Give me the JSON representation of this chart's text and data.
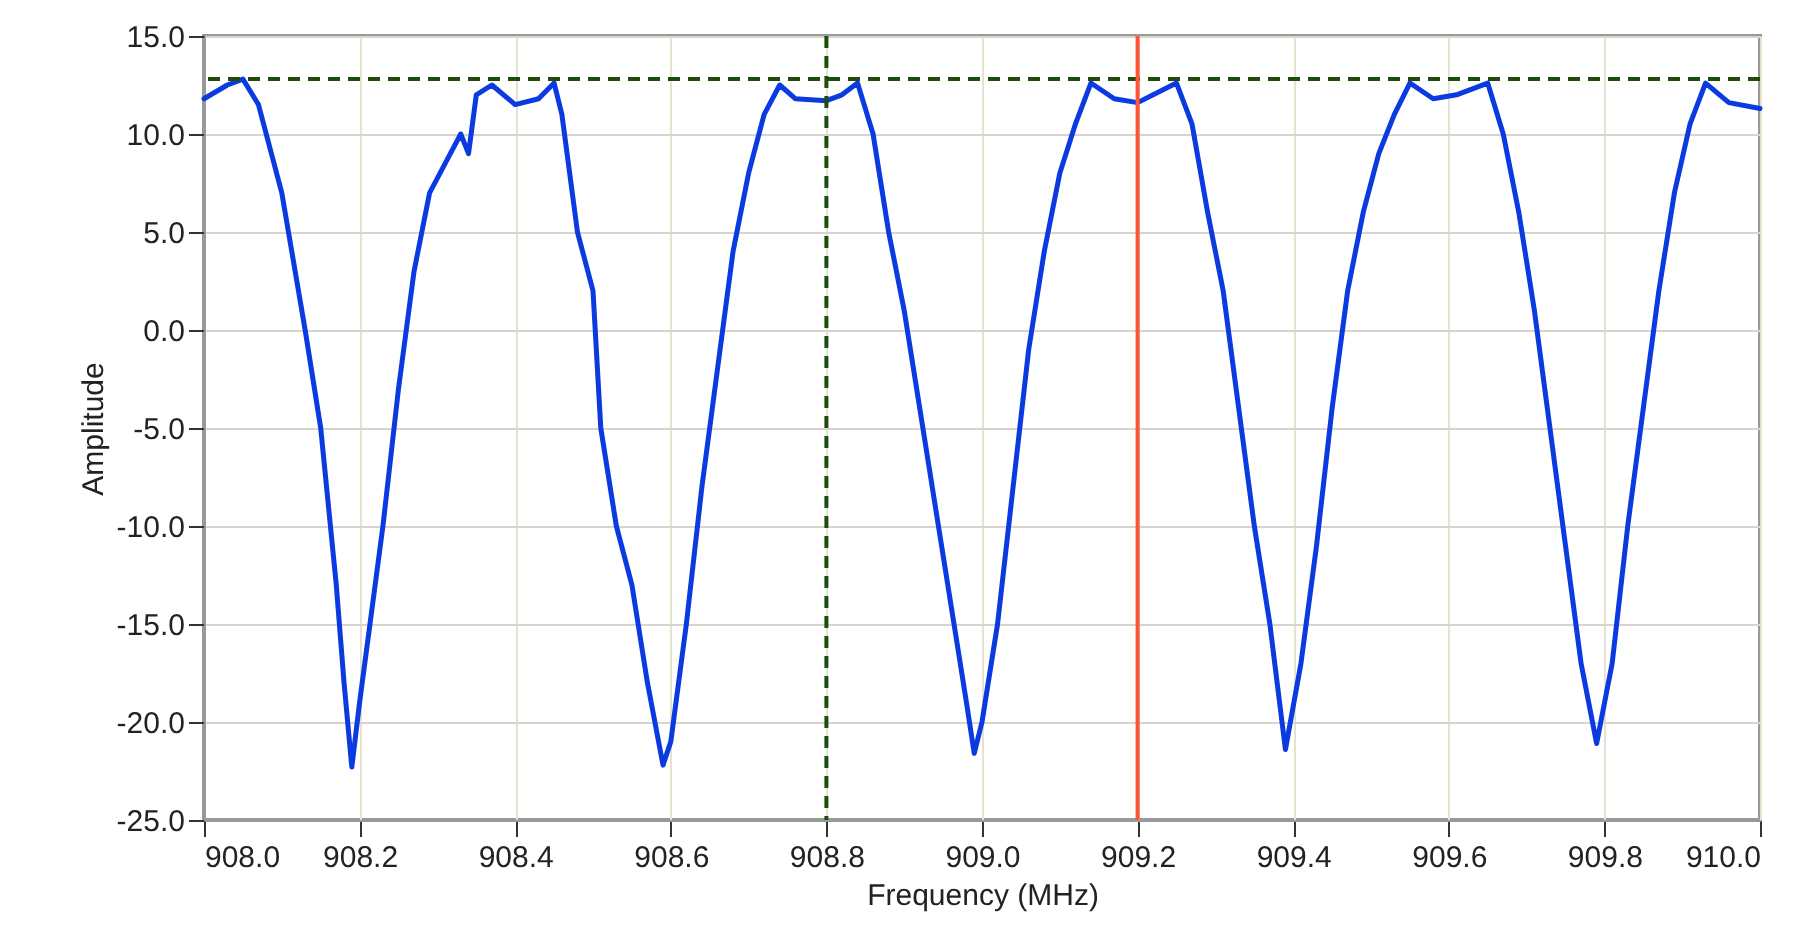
{
  "chart_data": {
    "type": "line",
    "xlabel": "Frequency (MHz)",
    "ylabel": "Amplitude",
    "x": [
      908.0,
      908.03,
      908.05,
      908.07,
      908.1,
      908.13,
      908.15,
      908.17,
      908.18,
      908.19,
      908.2,
      908.21,
      908.23,
      908.25,
      908.27,
      908.29,
      908.31,
      908.33,
      908.34,
      908.35,
      908.37,
      908.4,
      908.43,
      908.45,
      908.46,
      908.48,
      908.5,
      908.51,
      908.53,
      908.55,
      908.57,
      908.59,
      908.6,
      908.62,
      908.64,
      908.66,
      908.68,
      908.7,
      908.72,
      908.74,
      908.76,
      908.8,
      908.82,
      908.84,
      908.86,
      908.88,
      908.9,
      908.92,
      908.94,
      908.96,
      908.98,
      908.99,
      909.0,
      909.02,
      909.04,
      909.06,
      909.08,
      909.1,
      909.12,
      909.14,
      909.17,
      909.2,
      909.22,
      909.25,
      909.27,
      909.29,
      909.31,
      909.33,
      909.35,
      909.37,
      909.39,
      909.41,
      909.43,
      909.45,
      909.47,
      909.49,
      909.51,
      909.53,
      909.55,
      909.58,
      909.61,
      909.65,
      909.67,
      909.69,
      909.71,
      909.73,
      909.75,
      909.77,
      909.79,
      909.81,
      909.83,
      909.85,
      909.87,
      909.89,
      909.91,
      909.93,
      909.96,
      910.0
    ],
    "series": [
      {
        "color": "#0a3ae0",
        "values": [
          11.8,
          12.5,
          12.8,
          11.5,
          7,
          0,
          -5,
          -13,
          -18,
          -22.3,
          -19,
          -16,
          -10,
          -3,
          3,
          7,
          8.5,
          10,
          9,
          12,
          12.5,
          11.5,
          11.8,
          12.6,
          11,
          5,
          2,
          -5,
          -10,
          -13,
          -18,
          -22.2,
          -21,
          -15,
          -8,
          -2,
          4,
          8,
          11,
          12.5,
          11.8,
          11.7,
          12,
          12.6,
          10,
          5,
          1,
          -4,
          -9,
          -14,
          -19,
          -21.6,
          -20,
          -15,
          -8,
          -1,
          4,
          8,
          10.5,
          12.6,
          11.8,
          11.6,
          12,
          12.6,
          10.5,
          6,
          2,
          -4,
          -10,
          -15,
          -21.4,
          -17,
          -11,
          -4,
          2,
          6,
          9,
          11,
          12.6,
          11.8,
          12,
          12.6,
          10,
          6,
          1,
          -5,
          -11,
          -17,
          -21.1,
          -17,
          -10,
          -4,
          2,
          7,
          10.5,
          12.6,
          11.6,
          11.3
        ]
      }
    ],
    "xlim": [
      908.0,
      910.0
    ],
    "ylim": [
      -25.0,
      15.0
    ],
    "xticks": [
      {
        "value": 908.0,
        "label": "908.0"
      },
      {
        "value": 908.2,
        "label": "908.2"
      },
      {
        "value": 908.4,
        "label": "908.4"
      },
      {
        "value": 908.6,
        "label": "908.6"
      },
      {
        "value": 908.8,
        "label": "908.8"
      },
      {
        "value": 909.0,
        "label": "909.0"
      },
      {
        "value": 909.2,
        "label": "909.2"
      },
      {
        "value": 909.4,
        "label": "909.4"
      },
      {
        "value": 909.6,
        "label": "909.6"
      },
      {
        "value": 909.8,
        "label": "909.8"
      },
      {
        "value": 910.0,
        "label": "910.0"
      }
    ],
    "yticks": [
      {
        "value": -25,
        "label": "-25.0"
      },
      {
        "value": -20,
        "label": "-20.0"
      },
      {
        "value": -15,
        "label": "-15.0"
      },
      {
        "value": -10,
        "label": "-10.0"
      },
      {
        "value": -5,
        "label": "-5.0"
      },
      {
        "value": 0,
        "label": "0.0"
      },
      {
        "value": 5,
        "label": "5.0"
      },
      {
        "value": 10,
        "label": "10.0"
      },
      {
        "value": 15,
        "label": "15.0"
      }
    ],
    "ref_lines": [
      {
        "axis": "y",
        "value": 12.8,
        "color": "#1e4d0a",
        "line_style": "dashed"
      },
      {
        "axis": "x",
        "value": 908.8,
        "color": "#1e4d0a",
        "line_style": "dashed"
      },
      {
        "axis": "x",
        "value": 909.2,
        "color": "#ff5533",
        "line_style": "solid"
      }
    ],
    "grid": true,
    "line_style": "solid",
    "marker": "none"
  }
}
